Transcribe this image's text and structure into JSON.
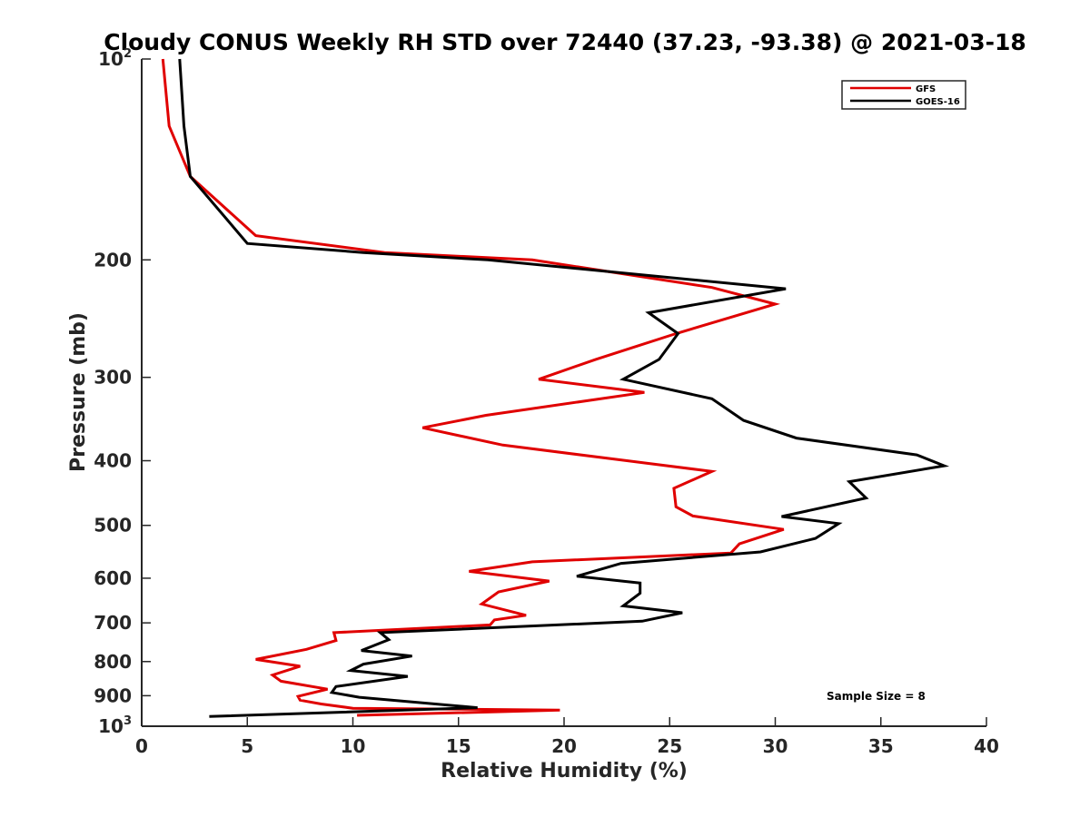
{
  "chart_data": {
    "type": "line",
    "title": "Cloudy CONUS Weekly RH STD over 72440 (37.23, -93.38) @ 2021-03-18",
    "xlabel": "Relative Humidity (%)",
    "ylabel": "Pressure (mb)",
    "xlim": [
      0,
      40
    ],
    "ylim": [
      100,
      1000
    ],
    "y_scale": "log",
    "y_reversed": true,
    "x_ticks": [
      0,
      5,
      10,
      15,
      20,
      25,
      30,
      35,
      40
    ],
    "y_ticks": [
      {
        "value": 100,
        "base": "10",
        "exp": "2"
      },
      {
        "value": 200,
        "label": "200"
      },
      {
        "value": 300,
        "label": "300"
      },
      {
        "value": 400,
        "label": "400"
      },
      {
        "value": 500,
        "label": "500"
      },
      {
        "value": 600,
        "label": "600"
      },
      {
        "value": 700,
        "label": "700"
      },
      {
        "value": 800,
        "label": "800"
      },
      {
        "value": 900,
        "label": "900"
      },
      {
        "value": 1000,
        "base": "10",
        "exp": "3"
      }
    ],
    "grid": false,
    "legend_position": "top-right",
    "series": [
      {
        "name": "GFS",
        "color": "#e00000",
        "points": [
          [
            1.0,
            100
          ],
          [
            1.3,
            126
          ],
          [
            2.3,
            150
          ],
          [
            5.4,
            184
          ],
          [
            11.5,
            195
          ],
          [
            18.5,
            200
          ],
          [
            27.0,
            220
          ],
          [
            30.0,
            233
          ],
          [
            25.3,
            258
          ],
          [
            21.5,
            282
          ],
          [
            18.8,
            302
          ],
          [
            23.8,
            316
          ],
          [
            16.3,
            342
          ],
          [
            13.3,
            357
          ],
          [
            17.1,
            379
          ],
          [
            27.0,
            415
          ],
          [
            25.2,
            440
          ],
          [
            25.3,
            469
          ],
          [
            26.1,
            484
          ],
          [
            30.4,
            507
          ],
          [
            28.3,
            533
          ],
          [
            27.9,
            550
          ],
          [
            18.5,
            567
          ],
          [
            15.5,
            586
          ],
          [
            19.3,
            606
          ],
          [
            16.9,
            629
          ],
          [
            16.1,
            656
          ],
          [
            18.2,
            682
          ],
          [
            16.7,
            693
          ],
          [
            16.5,
            705
          ],
          [
            9.1,
            724
          ],
          [
            9.2,
            744
          ],
          [
            7.8,
            767
          ],
          [
            5.4,
            794
          ],
          [
            7.5,
            813
          ],
          [
            6.2,
            838
          ],
          [
            6.6,
            856
          ],
          [
            8.8,
            880
          ],
          [
            7.4,
            902
          ],
          [
            7.5,
            914
          ],
          [
            8.5,
            926
          ],
          [
            10.0,
            940
          ],
          [
            19.8,
            946
          ],
          [
            10.2,
            963
          ]
        ]
      },
      {
        "name": "GOES-16",
        "color": "#000000",
        "points": [
          [
            1.8,
            100
          ],
          [
            2.0,
            126
          ],
          [
            2.3,
            150
          ],
          [
            5.0,
            189
          ],
          [
            10.5,
            195
          ],
          [
            16.4,
            200
          ],
          [
            30.5,
            221
          ],
          [
            24.0,
            240
          ],
          [
            25.4,
            258
          ],
          [
            24.5,
            282
          ],
          [
            22.8,
            302
          ],
          [
            27.0,
            323
          ],
          [
            28.5,
            348
          ],
          [
            31.0,
            370
          ],
          [
            36.7,
            392
          ],
          [
            38.0,
            407
          ],
          [
            33.5,
            430
          ],
          [
            34.3,
            455
          ],
          [
            30.3,
            485
          ],
          [
            33.0,
            497
          ],
          [
            31.9,
            523
          ],
          [
            29.3,
            548
          ],
          [
            22.7,
            570
          ],
          [
            20.6,
            596
          ],
          [
            23.6,
            610
          ],
          [
            23.6,
            632
          ],
          [
            22.8,
            660
          ],
          [
            25.6,
            676
          ],
          [
            23.7,
            696
          ],
          [
            11.3,
            724
          ],
          [
            11.7,
            742
          ],
          [
            10.4,
            770
          ],
          [
            12.8,
            785
          ],
          [
            10.5,
            807
          ],
          [
            9.9,
            825
          ],
          [
            12.6,
            842
          ],
          [
            9.2,
            872
          ],
          [
            9.0,
            890
          ],
          [
            10.3,
            905
          ],
          [
            15.9,
            938
          ],
          [
            3.2,
            967
          ]
        ]
      }
    ],
    "annotation": "Sample Size = 8"
  }
}
